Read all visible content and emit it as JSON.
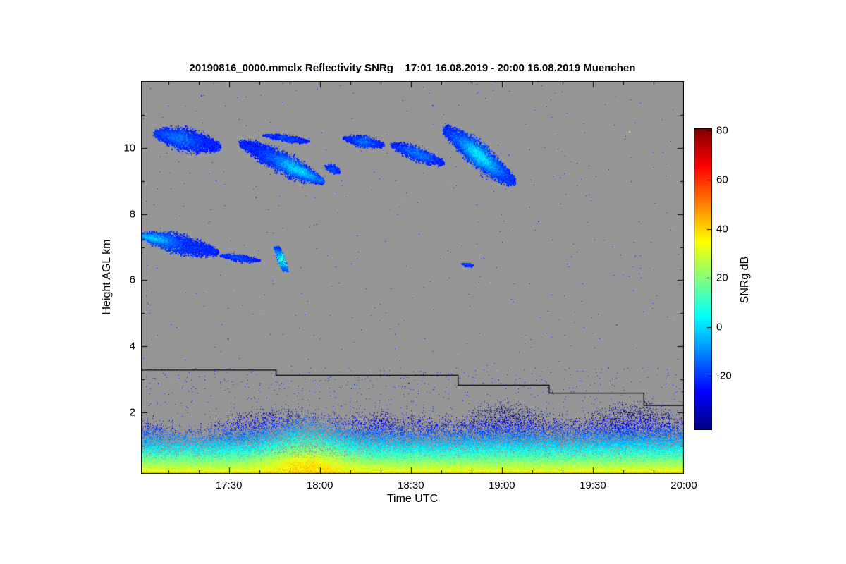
{
  "chart_data": {
    "type": "heatmap",
    "title": "20190816_0000.mmclx Reflectivity SNRg    17:01 16.08.2019 - 20:00 16.08.2019 Muenchen",
    "xlabel": "Time UTC",
    "ylabel": "Height AGL km",
    "x_domain": [
      17.017,
      20.0
    ],
    "y_domain": [
      0.14,
      12.03
    ],
    "x_ticks": [
      {
        "label": "17:30",
        "t": 17.5
      },
      {
        "label": "18:00",
        "t": 18.0
      },
      {
        "label": "18:30",
        "t": 18.5
      },
      {
        "label": "19:00",
        "t": 19.0
      },
      {
        "label": "19:30",
        "t": 19.5
      },
      {
        "label": "20:00",
        "t": 20.0
      }
    ],
    "y_ticks": [
      {
        "label": "2",
        "h": 2
      },
      {
        "label": "4",
        "h": 4
      },
      {
        "label": "6",
        "h": 6
      },
      {
        "label": "8",
        "h": 8
      },
      {
        "label": "10",
        "h": 10
      }
    ],
    "background_color": "#969696",
    "colorbar": {
      "label": "SNRg dB",
      "min": -42,
      "max": 81,
      "colormap": "jet",
      "ticks": [
        {
          "label": "80",
          "v": 80
        },
        {
          "label": "60",
          "v": 60
        },
        {
          "label": "40",
          "v": 40
        },
        {
          "label": "20",
          "v": 20
        },
        {
          "label": "0",
          "v": 0
        },
        {
          "label": "-20",
          "v": -20
        }
      ]
    },
    "noise_line": [
      {
        "t": 17.017,
        "h": 3.28
      },
      {
        "t": 17.76,
        "h": 3.28
      },
      {
        "t": 17.76,
        "h": 3.12
      },
      {
        "t": 18.76,
        "h": 3.12
      },
      {
        "t": 18.76,
        "h": 2.82
      },
      {
        "t": 19.26,
        "h": 2.82
      },
      {
        "t": 19.26,
        "h": 2.58
      },
      {
        "t": 19.78,
        "h": 2.58
      },
      {
        "t": 19.78,
        "h": 2.21
      },
      {
        "t": 20.0,
        "h": 2.21
      }
    ],
    "boundary_layer": {
      "surface_db": 42,
      "lapse_db_per_km": 42,
      "base_top": 1.3,
      "hump_center": 17.93,
      "hump_width": 0.22,
      "hump_bonus_db": 15
    },
    "speckle": {
      "uniform": 420,
      "low_band": 560
    },
    "special_specks": [
      {
        "t": 19.7,
        "h": 10.5,
        "v": 24
      },
      {
        "t": 18.62,
        "h": 11.3,
        "v": -18
      },
      {
        "t": 17.35,
        "h": 11.6,
        "v": -20
      },
      {
        "t": 19.2,
        "h": 7.8,
        "v": -16
      }
    ],
    "cloud_patches": [
      {
        "t0": 17.1,
        "h0": 10.45,
        "t1": 17.44,
        "h1": 10.05,
        "w": 0.95,
        "core_pos": 0.35,
        "base_db": -23,
        "core_boost": 10
      },
      {
        "t0": 17.57,
        "h0": 10.15,
        "t1": 18.01,
        "h1": 9.0,
        "w": 0.95,
        "core_pos": 0.7,
        "base_db": -23,
        "core_boost": 22
      },
      {
        "t0": 17.7,
        "h0": 10.4,
        "t1": 17.93,
        "h1": 10.2,
        "w": 0.3,
        "core_pos": 0.5,
        "base_db": -24,
        "core_boost": 6
      },
      {
        "t0": 18.04,
        "h0": 9.45,
        "t1": 18.1,
        "h1": 9.3,
        "w": 0.35,
        "core_pos": 0.5,
        "base_db": -23,
        "core_boost": 6
      },
      {
        "t0": 18.14,
        "h0": 10.3,
        "t1": 18.34,
        "h1": 10.1,
        "w": 0.5,
        "core_pos": 0.5,
        "base_db": -23,
        "core_boost": 10
      },
      {
        "t0": 18.4,
        "h0": 10.1,
        "t1": 18.67,
        "h1": 9.55,
        "w": 0.6,
        "core_pos": 0.5,
        "base_db": -23,
        "core_boost": 12
      },
      {
        "t0": 18.69,
        "h0": 10.55,
        "t1": 19.06,
        "h1": 9.0,
        "w": 1.15,
        "core_pos": 0.5,
        "base_db": -22,
        "core_boost": 24
      },
      {
        "t0": 17.02,
        "h0": 7.35,
        "t1": 17.43,
        "h1": 6.85,
        "w": 0.8,
        "core_pos": 0.12,
        "base_db": -22,
        "core_boost": 20
      },
      {
        "t0": 17.46,
        "h0": 6.75,
        "t1": 17.66,
        "h1": 6.6,
        "w": 0.3,
        "core_pos": 0.5,
        "base_db": -23,
        "core_boost": 5
      },
      {
        "t0": 17.76,
        "h0": 7.0,
        "t1": 17.81,
        "h1": 6.3,
        "w": 0.42,
        "core_pos": 0.55,
        "base_db": -20,
        "core_boost": 34
      },
      {
        "t0": 18.79,
        "h0": 6.5,
        "t1": 18.83,
        "h1": 6.44,
        "w": 0.18,
        "core_pos": 0.5,
        "base_db": -22,
        "core_boost": 4
      }
    ]
  }
}
